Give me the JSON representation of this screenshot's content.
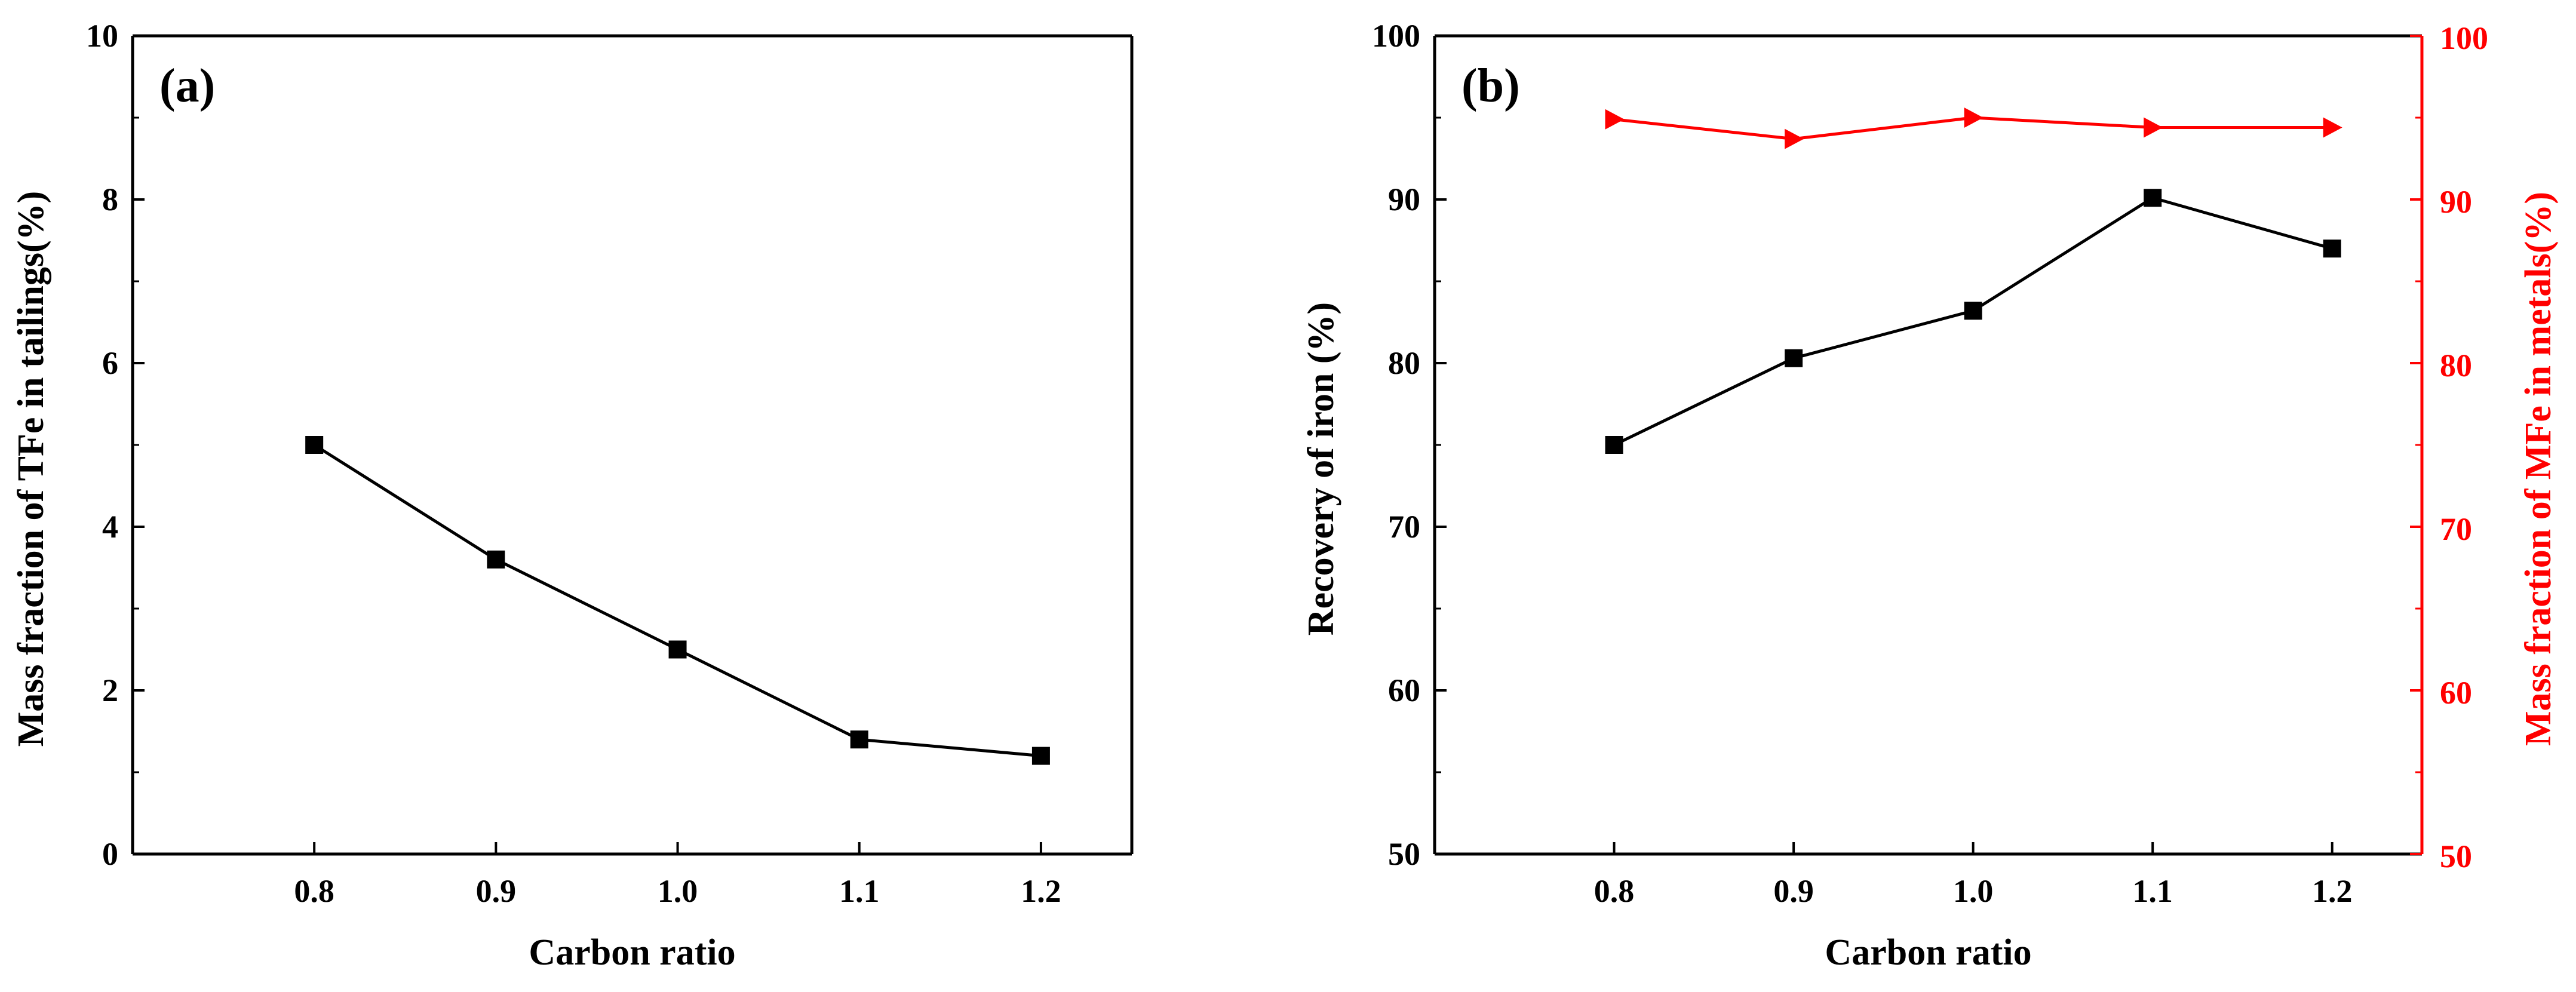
{
  "chart_data": [
    {
      "type": "line",
      "panel_label": "(a)",
      "xlabel": "Carbon ratio",
      "ylabel": "Mass fraction of  TFe in tailings(%)",
      "categories": [
        "0.8",
        "0.9",
        "1.0",
        "1.1",
        "1.2"
      ],
      "xlim": [
        0.7,
        1.25
      ],
      "ylim": [
        0,
        10
      ],
      "yticks": [
        "0",
        "2",
        "4",
        "6",
        "8",
        "10"
      ],
      "grid": false,
      "series": [
        {
          "name": "TFe in tailings",
          "values": [
            5.0,
            3.6,
            2.5,
            1.4,
            1.2
          ],
          "marker": "square",
          "color": "#000000"
        }
      ]
    },
    {
      "type": "line",
      "panel_label": "(b)",
      "xlabel": "Carbon ratio",
      "ylabel": "Recovery of iron (%)",
      "y2label": "Mass fraction of MFe in metals(%)",
      "categories": [
        "0.8",
        "0.9",
        "1.0",
        "1.1",
        "1.2"
      ],
      "xlim": [
        0.7,
        1.25
      ],
      "ylim": [
        50,
        100
      ],
      "yticks": [
        "50",
        "60",
        "70",
        "80",
        "90",
        "100"
      ],
      "y2lim": [
        50,
        100
      ],
      "y2ticks": [
        "50",
        "60",
        "70",
        "80",
        "90",
        "100"
      ],
      "grid": false,
      "series": [
        {
          "name": "Recovery of iron",
          "axis": "left",
          "values": [
            75.0,
            80.3,
            83.2,
            90.1,
            87.0
          ],
          "marker": "square",
          "color": "#000000"
        },
        {
          "name": "Mass fraction of MFe in metals",
          "axis": "right",
          "values": [
            94.9,
            93.7,
            95.0,
            94.4,
            94.4
          ],
          "marker": "triangle-right",
          "color": "#ff0000"
        }
      ]
    }
  ]
}
